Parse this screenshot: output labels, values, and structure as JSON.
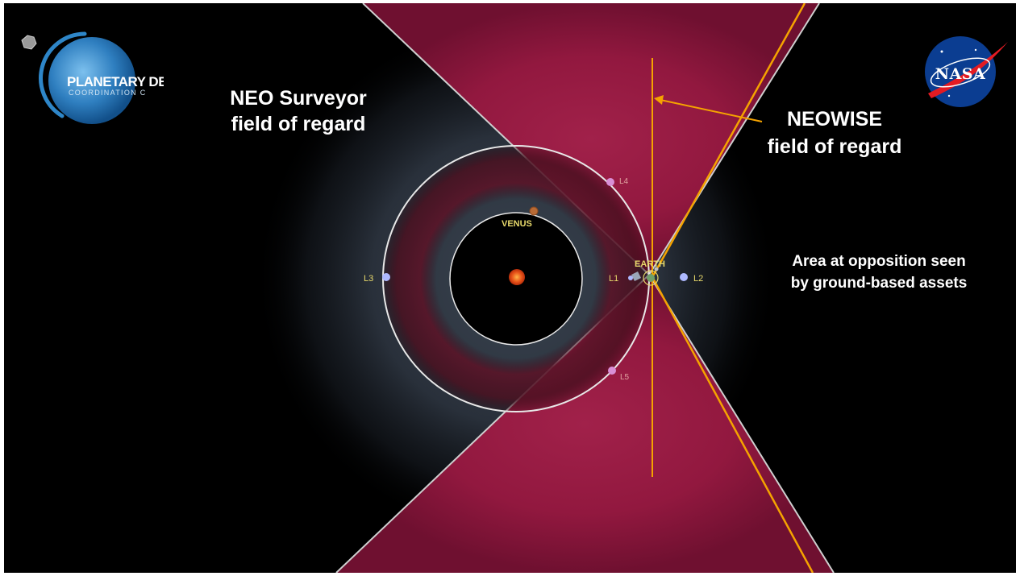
{
  "captions": {
    "neo_surveyor": "NEO Surveyor\nfield of regard",
    "neowise": "NEOWISE\nfield of regard",
    "ground": "Area at opposition seen\nby ground-based assets"
  },
  "bodies": {
    "venus": "VENUS",
    "earth": "EARTH",
    "l1": "L1",
    "l2": "L2",
    "l3": "L3",
    "l4": "L4",
    "l5": "L5"
  },
  "logos": {
    "pdco_title": "PLANETARY DEF",
    "pdco_sub": "COORDINATION C",
    "nasa": "NASA"
  },
  "colors": {
    "background": "#000000",
    "surveyor_field": "#7a1433",
    "neowise_line": "#f5a300",
    "orbit": "#e8e8e8",
    "sun": "#e8541a",
    "lagrange_point_colinear": "#aeb9ff",
    "lagrange_point_triangular": "#d98fd6",
    "label_yellow": "#e8d96b"
  }
}
